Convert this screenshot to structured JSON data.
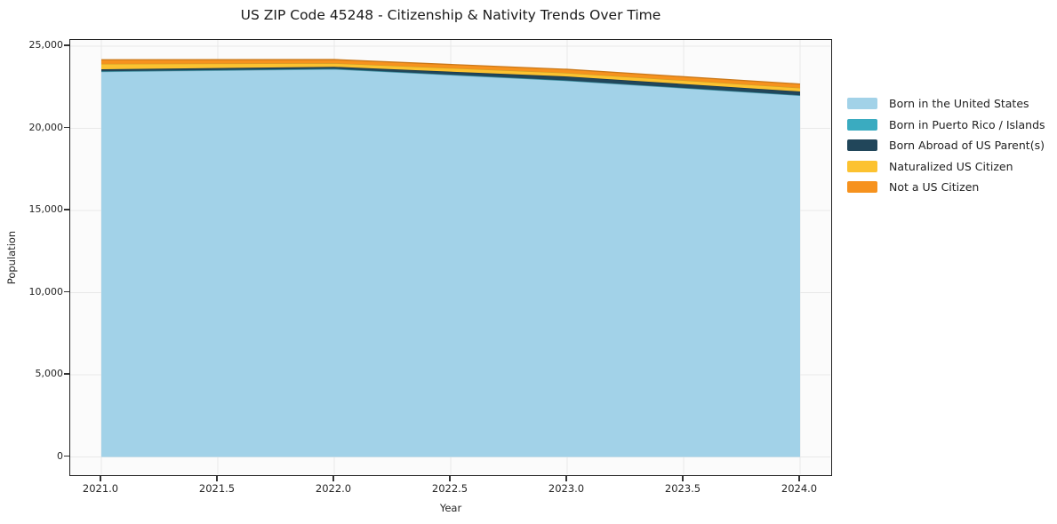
{
  "title": "US ZIP Code 45248 - Citizenship & Nativity Trends Over Time",
  "axes": {
    "x_label": "Year",
    "y_label": "Population"
  },
  "chart_data": {
    "type": "area",
    "stacked": true,
    "title": "US ZIP Code 45248 - Citizenship & Nativity Trends Over Time",
    "xlabel": "Year",
    "ylabel": "Population",
    "grid": true,
    "legend_position": "right-outside",
    "xlim": [
      2020.87,
      2024.14
    ],
    "ylim": [
      0,
      25000
    ],
    "x": [
      2021,
      2022,
      2023,
      2024
    ],
    "series": [
      {
        "name": "Born in the United States",
        "color": "#a2d2e8",
        "values": [
          23450,
          23600,
          22900,
          22000
        ]
      },
      {
        "name": "Born in Puerto Rico / Islands",
        "color": "#3aabc0",
        "values": [
          25,
          25,
          15,
          15
        ]
      },
      {
        "name": "Born Abroad of US Parent(s)",
        "color": "#21465a",
        "values": [
          120,
          120,
          240,
          230
        ]
      },
      {
        "name": "Naturalized US Citizen",
        "color": "#fcc230",
        "values": [
          330,
          220,
          220,
          220
        ]
      },
      {
        "name": "Not a US Citizen",
        "color": "#f6921e",
        "values": [
          250,
          220,
          215,
          230
        ]
      }
    ],
    "x_ticks": [
      {
        "value": 2021.0,
        "label": "2021.0"
      },
      {
        "value": 2021.5,
        "label": "2021.5"
      },
      {
        "value": 2022.0,
        "label": "2022.0"
      },
      {
        "value": 2022.5,
        "label": "2022.5"
      },
      {
        "value": 2023.0,
        "label": "2023.0"
      },
      {
        "value": 2023.5,
        "label": "2023.5"
      },
      {
        "value": 2024.0,
        "label": "2024.0"
      }
    ],
    "y_ticks": [
      {
        "value": 0,
        "label": "0"
      },
      {
        "value": 5000,
        "label": "5,000"
      },
      {
        "value": 10000,
        "label": "10,000"
      },
      {
        "value": 15000,
        "label": "15,000"
      },
      {
        "value": 20000,
        "label": "20,000"
      },
      {
        "value": 25000,
        "label": "25,000"
      }
    ]
  }
}
